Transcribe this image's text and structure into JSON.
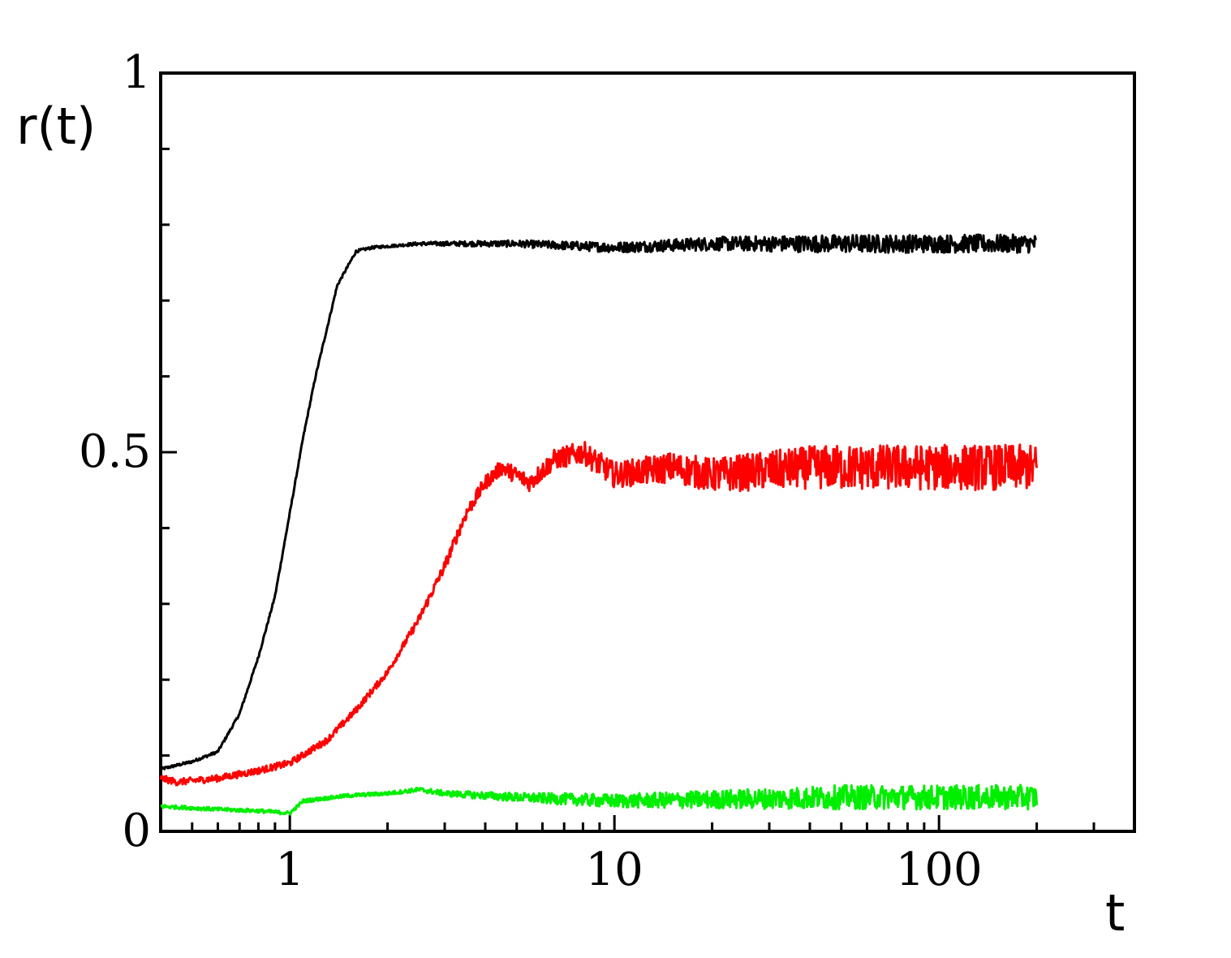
{
  "chart_data": {
    "type": "line",
    "x_scale": "log",
    "xlabel": "t",
    "ylabel": "r(t)",
    "xlim": [
      0.4,
      400
    ],
    "ylim": [
      0,
      1
    ],
    "x_ticks": [
      {
        "value": 1,
        "label": "1"
      },
      {
        "value": 10,
        "label": "10"
      },
      {
        "value": 100,
        "label": "100"
      }
    ],
    "x_minor_ticks": [
      0.5,
      0.6,
      0.7,
      0.8,
      0.9,
      2,
      3,
      4,
      5,
      6,
      7,
      8,
      9,
      20,
      30,
      40,
      50,
      60,
      70,
      80,
      90,
      200,
      300
    ],
    "y_ticks": [
      {
        "value": 0,
        "label": "0"
      },
      {
        "value": 0.5,
        "label": "0.5"
      },
      {
        "value": 1,
        "label": "1"
      }
    ],
    "y_minor_ticks": [
      0.1,
      0.2,
      0.3,
      0.4,
      0.6,
      0.7,
      0.8,
      0.9
    ],
    "grid": false,
    "legend": "none",
    "series": [
      {
        "color": "#000000",
        "noise": 0.012,
        "points": [
          [
            0.4,
            0.082
          ],
          [
            0.5,
            0.092
          ],
          [
            0.6,
            0.105
          ],
          [
            0.7,
            0.155
          ],
          [
            0.8,
            0.23
          ],
          [
            0.9,
            0.31
          ],
          [
            1.0,
            0.42
          ],
          [
            1.1,
            0.52
          ],
          [
            1.2,
            0.6
          ],
          [
            1.4,
            0.72
          ],
          [
            1.6,
            0.765
          ],
          [
            1.8,
            0.77
          ],
          [
            2.5,
            0.775
          ],
          [
            3.5,
            0.775
          ],
          [
            5,
            0.775
          ],
          [
            10,
            0.77
          ],
          [
            20,
            0.775
          ],
          [
            50,
            0.775
          ],
          [
            100,
            0.775
          ],
          [
            200,
            0.775
          ]
        ]
      },
      {
        "color": "#ff0000",
        "noise": 0.03,
        "points": [
          [
            0.4,
            0.07
          ],
          [
            0.45,
            0.065
          ],
          [
            0.6,
            0.07
          ],
          [
            0.8,
            0.08
          ],
          [
            1.0,
            0.09
          ],
          [
            1.3,
            0.12
          ],
          [
            1.6,
            0.16
          ],
          [
            2.0,
            0.21
          ],
          [
            2.5,
            0.28
          ],
          [
            3.0,
            0.35
          ],
          [
            3.5,
            0.42
          ],
          [
            4.0,
            0.46
          ],
          [
            4.5,
            0.48
          ],
          [
            5.5,
            0.46
          ],
          [
            6.5,
            0.49
          ],
          [
            8,
            0.5
          ],
          [
            10,
            0.47
          ],
          [
            15,
            0.48
          ],
          [
            20,
            0.47
          ],
          [
            40,
            0.48
          ],
          [
            70,
            0.48
          ],
          [
            100,
            0.48
          ],
          [
            200,
            0.48
          ]
        ]
      },
      {
        "color": "#00ee00",
        "noise": 0.016,
        "points": [
          [
            0.4,
            0.033
          ],
          [
            0.6,
            0.029
          ],
          [
            0.8,
            0.027
          ],
          [
            1.0,
            0.024
          ],
          [
            1.1,
            0.04
          ],
          [
            1.5,
            0.047
          ],
          [
            2.0,
            0.05
          ],
          [
            2.5,
            0.055
          ],
          [
            3,
            0.05
          ],
          [
            5,
            0.045
          ],
          [
            10,
            0.04
          ],
          [
            20,
            0.042
          ],
          [
            50,
            0.045
          ],
          [
            100,
            0.045
          ],
          [
            200,
            0.045
          ]
        ]
      }
    ]
  }
}
